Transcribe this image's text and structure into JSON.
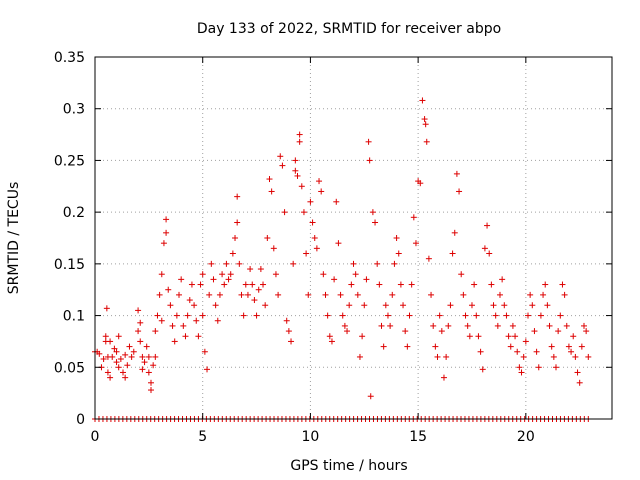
{
  "chart_data": {
    "type": "scatter",
    "title": "Day 133 of 2022, SRMTID for receiver abpo",
    "xlabel": "GPS time / hours",
    "ylabel": "SRMTID / TECUs",
    "xlim": [
      0,
      24
    ],
    "ylim": [
      0,
      0.35
    ],
    "grid": true,
    "marker": "+",
    "marker_color": "#dd0000",
    "x_ticks": [
      0,
      5,
      10,
      15,
      20
    ],
    "x_tick_labels": [
      "0",
      "5",
      "10",
      "15",
      "20"
    ],
    "y_ticks": [
      0,
      0.05,
      0.1,
      0.15,
      0.2,
      0.25,
      0.3,
      0.35
    ],
    "y_tick_labels": [
      "0",
      "0.05",
      "0.1",
      "0.15",
      "0.2",
      "0.25",
      "0.3",
      "0.35"
    ],
    "series": [
      {
        "name": "SRMTID",
        "points": [
          [
            0.0,
            0.065
          ],
          [
            0.1,
            0.065
          ],
          [
            0.2,
            0.063
          ],
          [
            0.3,
            0.05
          ],
          [
            0.4,
            0.058
          ],
          [
            0.5,
            0.075
          ],
          [
            0.5,
            0.08
          ],
          [
            0.55,
            0.107
          ],
          [
            0.6,
            0.06
          ],
          [
            0.6,
            0.045
          ],
          [
            0.7,
            0.04
          ],
          [
            0.7,
            0.075
          ],
          [
            0.8,
            0.06
          ],
          [
            0.9,
            0.068
          ],
          [
            1.0,
            0.055
          ],
          [
            1.0,
            0.065
          ],
          [
            1.1,
            0.05
          ],
          [
            1.1,
            0.08
          ],
          [
            1.2,
            0.058
          ],
          [
            1.3,
            0.045
          ],
          [
            1.4,
            0.04
          ],
          [
            1.4,
            0.062
          ],
          [
            1.5,
            0.052
          ],
          [
            1.6,
            0.07
          ],
          [
            1.7,
            0.06
          ],
          [
            1.8,
            0.065
          ],
          [
            2.0,
            0.085
          ],
          [
            2.0,
            0.105
          ],
          [
            2.1,
            0.093
          ],
          [
            2.1,
            0.075
          ],
          [
            2.2,
            0.06
          ],
          [
            2.2,
            0.048
          ],
          [
            2.3,
            0.055
          ],
          [
            2.4,
            0.07
          ],
          [
            2.5,
            0.045
          ],
          [
            2.5,
            0.06
          ],
          [
            2.6,
            0.035
          ],
          [
            2.6,
            0.028
          ],
          [
            2.7,
            0.052
          ],
          [
            2.8,
            0.06
          ],
          [
            2.8,
            0.085
          ],
          [
            2.9,
            0.1
          ],
          [
            3.0,
            0.12
          ],
          [
            3.1,
            0.095
          ],
          [
            3.1,
            0.14
          ],
          [
            3.2,
            0.17
          ],
          [
            3.3,
            0.193
          ],
          [
            3.3,
            0.18
          ],
          [
            3.4,
            0.125
          ],
          [
            3.5,
            0.11
          ],
          [
            3.6,
            0.09
          ],
          [
            3.7,
            0.075
          ],
          [
            3.8,
            0.1
          ],
          [
            3.9,
            0.12
          ],
          [
            4.0,
            0.135
          ],
          [
            4.1,
            0.09
          ],
          [
            4.2,
            0.08
          ],
          [
            4.3,
            0.1
          ],
          [
            4.4,
            0.115
          ],
          [
            4.5,
            0.13
          ],
          [
            4.6,
            0.11
          ],
          [
            4.7,
            0.095
          ],
          [
            4.8,
            0.08
          ],
          [
            4.9,
            0.13
          ],
          [
            5.0,
            0.14
          ],
          [
            5.0,
            0.1
          ],
          [
            5.1,
            0.065
          ],
          [
            5.2,
            0.048
          ],
          [
            5.3,
            0.12
          ],
          [
            5.4,
            0.15
          ],
          [
            5.5,
            0.135
          ],
          [
            5.6,
            0.11
          ],
          [
            5.7,
            0.095
          ],
          [
            5.8,
            0.12
          ],
          [
            5.9,
            0.14
          ],
          [
            6.0,
            0.13
          ],
          [
            6.1,
            0.15
          ],
          [
            6.2,
            0.135
          ],
          [
            6.3,
            0.14
          ],
          [
            6.4,
            0.16
          ],
          [
            6.5,
            0.175
          ],
          [
            6.6,
            0.215
          ],
          [
            6.6,
            0.19
          ],
          [
            6.7,
            0.15
          ],
          [
            6.8,
            0.12
          ],
          [
            6.9,
            0.1
          ],
          [
            7.0,
            0.13
          ],
          [
            7.1,
            0.12
          ],
          [
            7.2,
            0.145
          ],
          [
            7.3,
            0.13
          ],
          [
            7.4,
            0.115
          ],
          [
            7.5,
            0.1
          ],
          [
            7.6,
            0.125
          ],
          [
            7.7,
            0.145
          ],
          [
            7.8,
            0.13
          ],
          [
            7.9,
            0.11
          ],
          [
            8.0,
            0.175
          ],
          [
            8.1,
            0.232
          ],
          [
            8.2,
            0.22
          ],
          [
            8.3,
            0.165
          ],
          [
            8.4,
            0.14
          ],
          [
            8.5,
            0.12
          ],
          [
            8.6,
            0.254
          ],
          [
            8.7,
            0.245
          ],
          [
            8.8,
            0.2
          ],
          [
            8.9,
            0.095
          ],
          [
            9.0,
            0.085
          ],
          [
            9.1,
            0.075
          ],
          [
            9.2,
            0.15
          ],
          [
            9.3,
            0.25
          ],
          [
            9.3,
            0.24
          ],
          [
            9.4,
            0.235
          ],
          [
            9.5,
            0.275
          ],
          [
            9.5,
            0.268
          ],
          [
            9.6,
            0.225
          ],
          [
            9.7,
            0.2
          ],
          [
            9.8,
            0.16
          ],
          [
            9.9,
            0.12
          ],
          [
            10.0,
            0.21
          ],
          [
            10.1,
            0.19
          ],
          [
            10.2,
            0.175
          ],
          [
            10.3,
            0.165
          ],
          [
            10.4,
            0.23
          ],
          [
            10.5,
            0.22
          ],
          [
            10.6,
            0.14
          ],
          [
            10.7,
            0.12
          ],
          [
            10.8,
            0.1
          ],
          [
            10.9,
            0.08
          ],
          [
            11.0,
            0.075
          ],
          [
            11.1,
            0.135
          ],
          [
            11.2,
            0.21
          ],
          [
            11.3,
            0.17
          ],
          [
            11.4,
            0.12
          ],
          [
            11.5,
            0.1
          ],
          [
            11.6,
            0.09
          ],
          [
            11.7,
            0.085
          ],
          [
            11.8,
            0.11
          ],
          [
            11.9,
            0.13
          ],
          [
            12.0,
            0.15
          ],
          [
            12.1,
            0.14
          ],
          [
            12.2,
            0.12
          ],
          [
            12.3,
            0.06
          ],
          [
            12.4,
            0.08
          ],
          [
            12.5,
            0.11
          ],
          [
            12.6,
            0.135
          ],
          [
            12.7,
            0.268
          ],
          [
            12.75,
            0.25
          ],
          [
            12.8,
            0.022
          ],
          [
            12.9,
            0.2
          ],
          [
            13.0,
            0.19
          ],
          [
            13.1,
            0.15
          ],
          [
            13.2,
            0.13
          ],
          [
            13.3,
            0.09
          ],
          [
            13.4,
            0.07
          ],
          [
            13.5,
            0.11
          ],
          [
            13.6,
            0.1
          ],
          [
            13.7,
            0.09
          ],
          [
            13.8,
            0.12
          ],
          [
            13.9,
            0.15
          ],
          [
            14.0,
            0.175
          ],
          [
            14.1,
            0.16
          ],
          [
            14.2,
            0.13
          ],
          [
            14.3,
            0.11
          ],
          [
            14.4,
            0.085
          ],
          [
            14.5,
            0.07
          ],
          [
            14.6,
            0.1
          ],
          [
            14.7,
            0.13
          ],
          [
            14.8,
            0.195
          ],
          [
            14.9,
            0.17
          ],
          [
            15.0,
            0.23
          ],
          [
            15.1,
            0.228
          ],
          [
            15.2,
            0.308
          ],
          [
            15.3,
            0.29
          ],
          [
            15.35,
            0.285
          ],
          [
            15.4,
            0.268
          ],
          [
            15.5,
            0.155
          ],
          [
            15.6,
            0.12
          ],
          [
            15.7,
            0.09
          ],
          [
            15.8,
            0.07
          ],
          [
            15.9,
            0.06
          ],
          [
            16.0,
            0.1
          ],
          [
            16.1,
            0.085
          ],
          [
            16.2,
            0.04
          ],
          [
            16.3,
            0.06
          ],
          [
            16.4,
            0.09
          ],
          [
            16.5,
            0.11
          ],
          [
            16.6,
            0.16
          ],
          [
            16.7,
            0.18
          ],
          [
            16.8,
            0.237
          ],
          [
            16.9,
            0.22
          ],
          [
            17.0,
            0.14
          ],
          [
            17.1,
            0.12
          ],
          [
            17.2,
            0.1
          ],
          [
            17.3,
            0.09
          ],
          [
            17.4,
            0.08
          ],
          [
            17.5,
            0.11
          ],
          [
            17.6,
            0.13
          ],
          [
            17.7,
            0.1
          ],
          [
            17.8,
            0.08
          ],
          [
            17.9,
            0.065
          ],
          [
            18.0,
            0.048
          ],
          [
            18.1,
            0.165
          ],
          [
            18.2,
            0.187
          ],
          [
            18.3,
            0.16
          ],
          [
            18.4,
            0.13
          ],
          [
            18.5,
            0.11
          ],
          [
            18.6,
            0.1
          ],
          [
            18.7,
            0.09
          ],
          [
            18.8,
            0.12
          ],
          [
            18.9,
            0.135
          ],
          [
            19.0,
            0.11
          ],
          [
            19.1,
            0.1
          ],
          [
            19.2,
            0.08
          ],
          [
            19.3,
            0.07
          ],
          [
            19.4,
            0.09
          ],
          [
            19.5,
            0.08
          ],
          [
            19.6,
            0.065
          ],
          [
            19.7,
            0.05
          ],
          [
            19.8,
            0.045
          ],
          [
            19.9,
            0.06
          ],
          [
            20.0,
            0.075
          ],
          [
            20.1,
            0.1
          ],
          [
            20.2,
            0.12
          ],
          [
            20.3,
            0.11
          ],
          [
            20.4,
            0.085
          ],
          [
            20.5,
            0.065
          ],
          [
            20.6,
            0.05
          ],
          [
            20.7,
            0.1
          ],
          [
            20.8,
            0.12
          ],
          [
            20.9,
            0.13
          ],
          [
            21.0,
            0.11
          ],
          [
            21.1,
            0.09
          ],
          [
            21.2,
            0.07
          ],
          [
            21.3,
            0.06
          ],
          [
            21.4,
            0.05
          ],
          [
            21.5,
            0.085
          ],
          [
            21.6,
            0.1
          ],
          [
            21.7,
            0.13
          ],
          [
            21.8,
            0.12
          ],
          [
            21.9,
            0.09
          ],
          [
            22.0,
            0.07
          ],
          [
            22.1,
            0.065
          ],
          [
            22.2,
            0.08
          ],
          [
            22.3,
            0.06
          ],
          [
            22.4,
            0.045
          ],
          [
            22.5,
            0.035
          ],
          [
            22.6,
            0.07
          ],
          [
            22.7,
            0.09
          ],
          [
            22.8,
            0.085
          ],
          [
            22.9,
            0.06
          ]
        ]
      }
    ],
    "baseline_zero_points_count": 125
  }
}
